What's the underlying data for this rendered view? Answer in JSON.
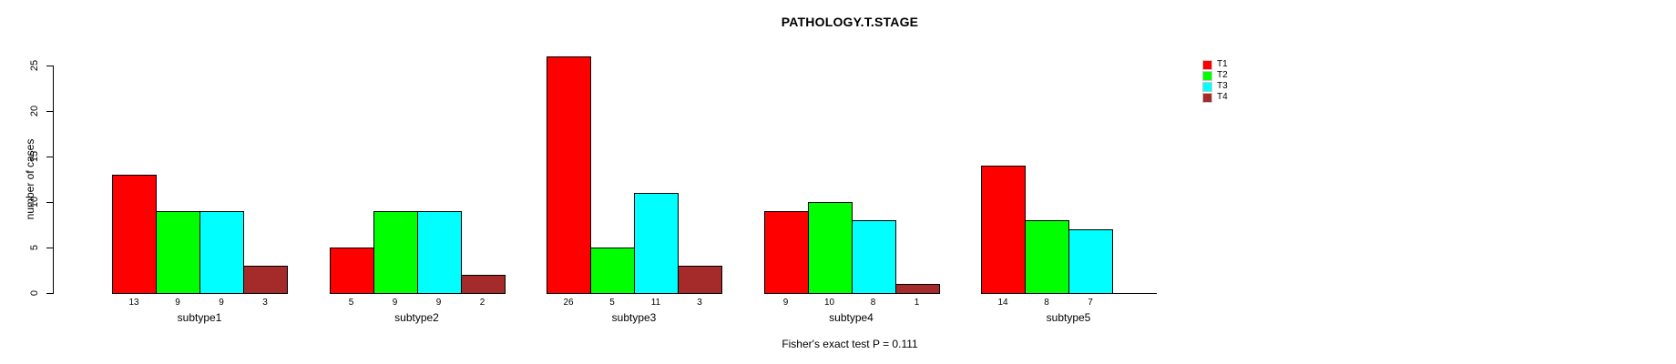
{
  "chart_data": {
    "type": "bar",
    "title": "PATHOLOGY.T.STAGE",
    "ylabel": "number of cases",
    "xlabel": "",
    "ylim": [
      0,
      25
    ],
    "yticks": [
      0,
      5,
      10,
      15,
      20,
      25
    ],
    "grid": false,
    "legend_position": "top-right",
    "bar_value_labels": true,
    "categories": [
      "subtype1",
      "subtype2",
      "subtype3",
      "subtype4",
      "subtype5"
    ],
    "series": [
      {
        "name": "T1",
        "color": "#FF0000",
        "values": [
          13,
          5,
          26,
          9,
          14
        ]
      },
      {
        "name": "T2",
        "color": "#00FF00",
        "values": [
          9,
          9,
          5,
          10,
          8
        ]
      },
      {
        "name": "T3",
        "color": "#00FFFF",
        "values": [
          9,
          9,
          11,
          8,
          7
        ]
      },
      {
        "name": "T4",
        "color": "#A52A2A",
        "values": [
          3,
          2,
          3,
          1,
          0
        ]
      }
    ],
    "annotation": "Fisher's exact test P = 0.111"
  }
}
